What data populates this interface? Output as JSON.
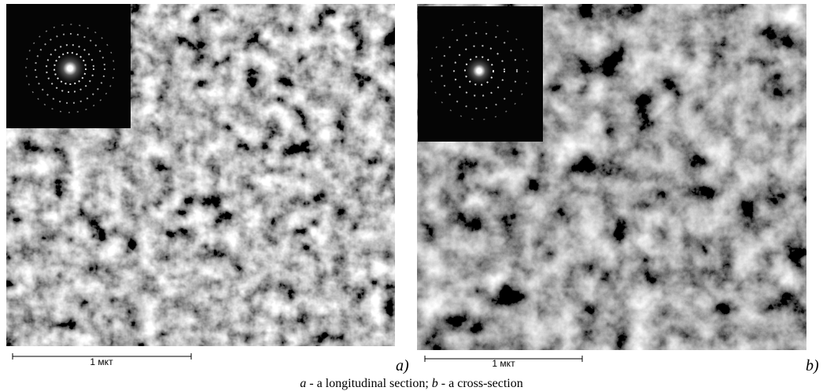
{
  "panels": [
    {
      "scale_bar": "1 мкт",
      "label": "a)"
    },
    {
      "scale_bar": "1 мкт",
      "label": "b)"
    }
  ],
  "caption": [
    {
      "letter": "a",
      "text": " - a longitudinal section; "
    },
    {
      "letter": "b",
      "text": " - a cross-section"
    }
  ]
}
